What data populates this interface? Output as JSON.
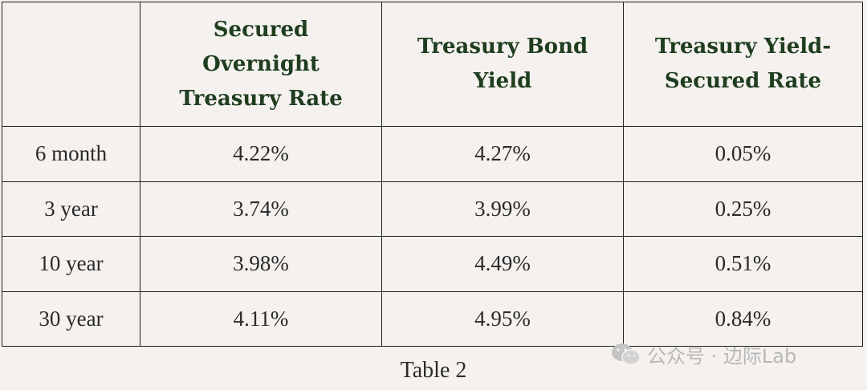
{
  "table": {
    "headers": [
      "",
      "Secured Overnight Treasury Rate",
      "Treasury Bond Yield",
      "Treasury Yield-Secured Rate"
    ],
    "rows": [
      [
        "6 month",
        "4.22%",
        "4.27%",
        "0.05%"
      ],
      [
        "3 year",
        "3.74%",
        "3.99%",
        "0.25%"
      ],
      [
        "10 year",
        "3.98%",
        "4.49%",
        "0.51%"
      ],
      [
        "30 year",
        "4.11%",
        "4.95%",
        "0.84%"
      ]
    ]
  },
  "caption": "Table 2",
  "watermark": {
    "icon": "wechat-icon",
    "text": "公众号 · 边际Lab"
  },
  "colors": {
    "background": "#f4f1ee",
    "header_text": "#1f3d1f",
    "border": "#1f1f1f",
    "watermark": "#b8b8b8"
  }
}
